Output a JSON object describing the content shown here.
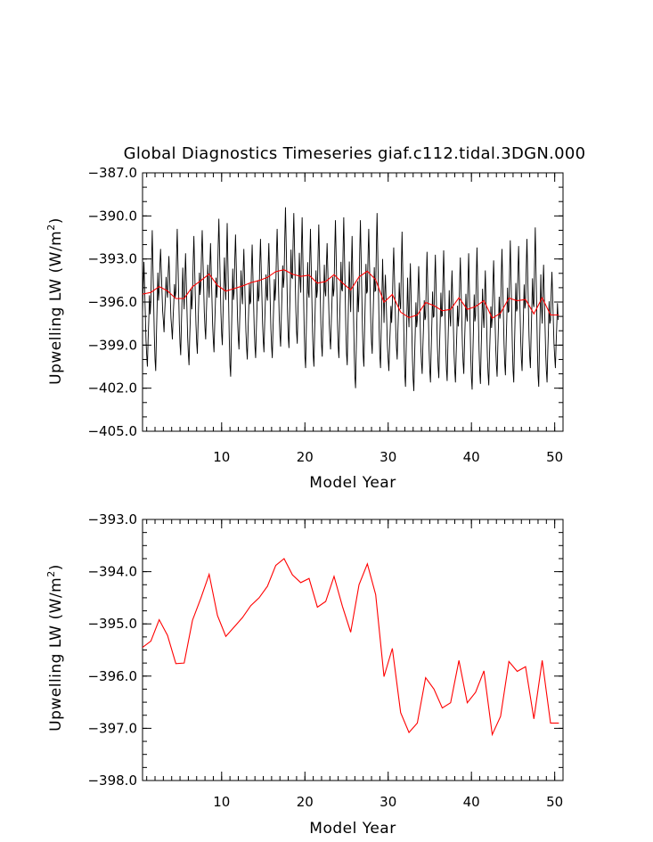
{
  "title": "Global Diagnostics Timeseries giaf.c112.tidal.3DGN.000",
  "colors": {
    "monthly": "#000000",
    "annual": "#ff0000",
    "frame": "#000000"
  },
  "chart_data": [
    {
      "type": "line",
      "title": "Global Diagnostics Timeseries giaf.c112.tidal.3DGN.000",
      "xlabel": "Model Year",
      "ylabel": "Upwelling LW (W/m2)",
      "ylabel_parts": {
        "main": "Upwelling LW (W/m",
        "sup": "2",
        "end": ")"
      },
      "xlim": [
        0.5,
        51.0
      ],
      "ylim": [
        -405.0,
        -387.0
      ],
      "xticks": [
        10,
        20,
        30,
        40,
        50
      ],
      "yticks": [
        -405.0,
        -402.0,
        -399.0,
        -396.0,
        -393.0,
        -390.0,
        -387.0
      ],
      "ytick_labels": [
        "−405.0",
        "−402.0",
        "−399.0",
        "−396.0",
        "−393.0",
        "−390.0",
        "−387.0"
      ],
      "grid": false,
      "monthly_cycle": {
        "peaks": [
          -393.2,
          -391.0,
          -392.3,
          -392.8,
          -390.9,
          -392.6,
          -391.4,
          -391.0,
          -391.9,
          -390.2,
          -390.5,
          -391.3,
          -392.3,
          -392.0,
          -391.6,
          -391.9,
          -390.9,
          -389.4,
          -389.8,
          -390.1,
          -390.9,
          -390.6,
          -391.9,
          -390.3,
          -390.1,
          -391.4,
          -390.3,
          -390.9,
          -389.8,
          -394.1,
          -392.2,
          -391.1,
          -393.3,
          -393.5,
          -392.5,
          -392.7,
          -392.4,
          -393.8,
          -392.9,
          -392.6,
          -392.2,
          -393.8,
          -393.1,
          -392.3,
          -391.7,
          -392.1,
          -391.6,
          -390.8,
          -393.4,
          -393.9
        ],
        "troughs": [
          -400.5,
          -400.8,
          -398.1,
          -398.6,
          -399.7,
          -400.4,
          -399.6,
          -398.6,
          -399.5,
          -399.0,
          -401.2,
          -399.3,
          -400.0,
          -399.9,
          -399.5,
          -399.9,
          -399.1,
          -399.2,
          -398.9,
          -400.6,
          -400.5,
          -399.8,
          -399.3,
          -399.9,
          -400.4,
          -402.0,
          -400.5,
          -399.6,
          -400.6,
          -400.8,
          -400.0,
          -401.9,
          -402.2,
          -401.0,
          -401.6,
          -401.3,
          -401.5,
          -401.6,
          -401.0,
          -402.1,
          -401.7,
          -401.8,
          -401.2,
          -401.1,
          -401.6,
          -400.8,
          -400.6,
          -401.9,
          -401.6,
          -400.6
        ]
      },
      "series": [
        {
          "x": [
            0.5,
            1.5,
            2.5,
            3.5,
            4.5,
            5.5,
            6.5,
            7.5,
            8.5,
            9.5,
            10.5,
            11.5,
            12.5,
            13.5,
            14.5,
            15.5,
            16.5,
            17.5,
            18.5,
            19.5,
            20.5,
            21.5,
            22.5,
            23.5,
            24.5,
            25.5,
            26.5,
            27.5,
            28.5,
            29.5,
            30.5,
            31.5,
            32.5,
            33.5,
            34.5,
            35.5,
            36.5,
            37.5,
            38.5,
            39.5,
            40.5,
            41.5,
            42.5,
            43.5,
            44.5,
            45.5,
            46.5,
            47.5,
            48.5,
            49.5,
            50.5
          ]
        }
      ]
    },
    {
      "type": "line",
      "xlabel": "Model Year",
      "ylabel": "Upwelling LW (W/m2)",
      "ylabel_parts": {
        "main": "Upwelling LW (W/m",
        "sup": "2",
        "end": ")"
      },
      "xlim": [
        0.5,
        51.0
      ],
      "ylim": [
        -398.0,
        -393.0
      ],
      "xticks": [
        10,
        20,
        30,
        40,
        50
      ],
      "yticks": [
        -398.0,
        -397.0,
        -396.0,
        -395.0,
        -394.0,
        -393.0
      ],
      "ytick_labels": [
        "−398.0",
        "−397.0",
        "−396.0",
        "−395.0",
        "−394.0",
        "−393.0"
      ],
      "grid": false,
      "series": [
        {
          "x": [
            0.5,
            1.5,
            2.5,
            3.5,
            4.5,
            5.5,
            6.5,
            7.5,
            8.5,
            9.5,
            10.5,
            11.5,
            12.5,
            13.5,
            14.5,
            15.5,
            16.5,
            17.5,
            18.5,
            19.5,
            20.5,
            21.5,
            22.5,
            23.5,
            24.5,
            25.5,
            26.5,
            27.5,
            28.5,
            29.5,
            30.5,
            31.5,
            32.5,
            33.5,
            34.5,
            35.5,
            36.5,
            37.5,
            38.5,
            39.5,
            40.5,
            41.5,
            42.5,
            43.5,
            44.5,
            45.5,
            46.5,
            47.5,
            48.5,
            49.5,
            50.5
          ],
          "values": [
            -395.45,
            -395.33,
            -394.92,
            -395.22,
            -395.76,
            -395.75,
            -394.93,
            -394.51,
            -394.05,
            -394.84,
            -395.24,
            -395.06,
            -394.88,
            -394.65,
            -394.5,
            -394.28,
            -393.88,
            -393.75,
            -394.06,
            -394.21,
            -394.13,
            -394.68,
            -394.57,
            -394.09,
            -394.66,
            -395.16,
            -394.25,
            -393.85,
            -394.44,
            -396.01,
            -395.47,
            -396.7,
            -397.08,
            -396.9,
            -396.03,
            -396.25,
            -396.61,
            -396.51,
            -395.7,
            -396.51,
            -396.31,
            -395.9,
            -397.12,
            -396.77,
            -395.72,
            -395.91,
            -395.82,
            -396.82,
            -395.7,
            -396.9,
            -396.9
          ]
        }
      ]
    }
  ]
}
